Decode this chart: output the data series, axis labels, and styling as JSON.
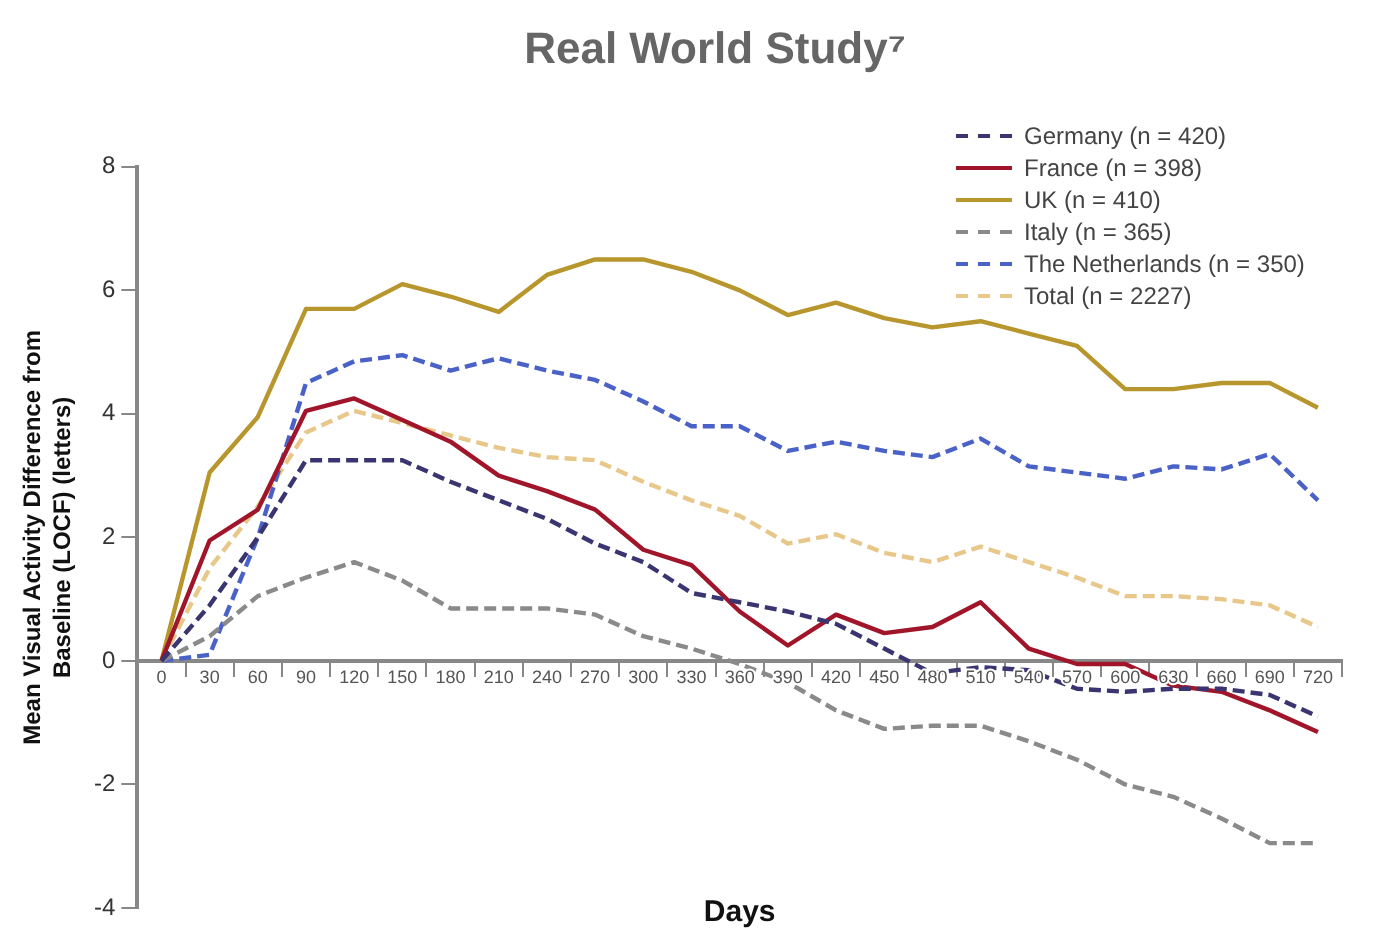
{
  "chart_data": {
    "type": "line",
    "title": "Real World Study⁷",
    "xlabel": "Days",
    "ylabel": "Mean Visual Activity Difference from Baseline (LOCF) (letters)",
    "categories": [
      "0",
      "30",
      "60",
      "90",
      "120",
      "150",
      "180",
      "210",
      "240",
      "270",
      "300",
      "330",
      "360",
      "390",
      "420",
      "450",
      "480",
      "510",
      "540",
      "570",
      "600",
      "630",
      "660",
      "690",
      "720"
    ],
    "ylim": [
      -4,
      8
    ],
    "yticks": [
      -4,
      -2,
      0,
      2,
      4,
      6,
      8
    ],
    "grid": false,
    "legend": "top right",
    "marker": "none",
    "series": [
      {
        "name": "Germany (n = 420)",
        "color": "#3a3570",
        "line_style": "dashed",
        "values": [
          0,
          0.9,
          2.0,
          3.25,
          3.25,
          3.25,
          2.9,
          2.6,
          2.3,
          1.9,
          1.6,
          1.1,
          0.95,
          0.8,
          0.6,
          0.2,
          -0.2,
          -0.1,
          -0.15,
          -0.45,
          -0.5,
          -0.45,
          -0.45,
          -0.55,
          -0.9
        ]
      },
      {
        "name": "France (n = 398)",
        "color": "#a0152a",
        "line_style": "solid",
        "values": [
          0,
          1.95,
          2.45,
          4.05,
          4.25,
          3.9,
          3.55,
          3.0,
          2.75,
          2.45,
          1.8,
          1.55,
          0.8,
          0.25,
          0.75,
          0.45,
          0.55,
          0.95,
          0.2,
          -0.05,
          -0.05,
          -0.4,
          -0.5,
          -0.8,
          -1.15
        ]
      },
      {
        "name": "UK (n = 410)",
        "color": "#b8962e",
        "line_style": "solid",
        "values": [
          0,
          3.05,
          3.95,
          5.7,
          5.7,
          6.1,
          5.9,
          5.65,
          6.25,
          6.5,
          6.5,
          6.3,
          6.0,
          5.6,
          5.8,
          5.55,
          5.4,
          5.5,
          5.3,
          5.1,
          4.4,
          4.4,
          4.5,
          4.5,
          4.1
        ]
      },
      {
        "name": "Italy (n = 365)",
        "color": "#8a8a8a",
        "line_style": "dashed",
        "values": [
          0,
          0.4,
          1.05,
          1.35,
          1.6,
          1.3,
          0.85,
          0.85,
          0.85,
          0.75,
          0.4,
          0.2,
          -0.05,
          -0.35,
          -0.8,
          -1.1,
          -1.05,
          -1.05,
          -1.3,
          -1.6,
          -2.0,
          -2.2,
          -2.55,
          -2.95,
          -2.95
        ]
      },
      {
        "name": "The Netherlands (n = 350)",
        "color": "#4a62c8",
        "line_style": "dashed",
        "values": [
          0,
          0.1,
          2.0,
          4.5,
          4.85,
          4.95,
          4.7,
          4.9,
          4.7,
          4.55,
          4.2,
          3.8,
          3.8,
          3.4,
          3.55,
          3.4,
          3.3,
          3.6,
          3.15,
          3.05,
          2.95,
          3.15,
          3.1,
          3.35,
          2.6
        ]
      },
      {
        "name": "Total (n = 2227)",
        "color": "#e8c88a",
        "line_style": "dashed",
        "values": [
          0,
          1.5,
          2.5,
          3.7,
          4.05,
          3.85,
          3.65,
          3.45,
          3.3,
          3.25,
          2.9,
          2.6,
          2.35,
          1.9,
          2.05,
          1.75,
          1.6,
          1.85,
          1.6,
          1.35,
          1.05,
          1.05,
          1.0,
          0.9,
          0.55
        ]
      }
    ]
  }
}
